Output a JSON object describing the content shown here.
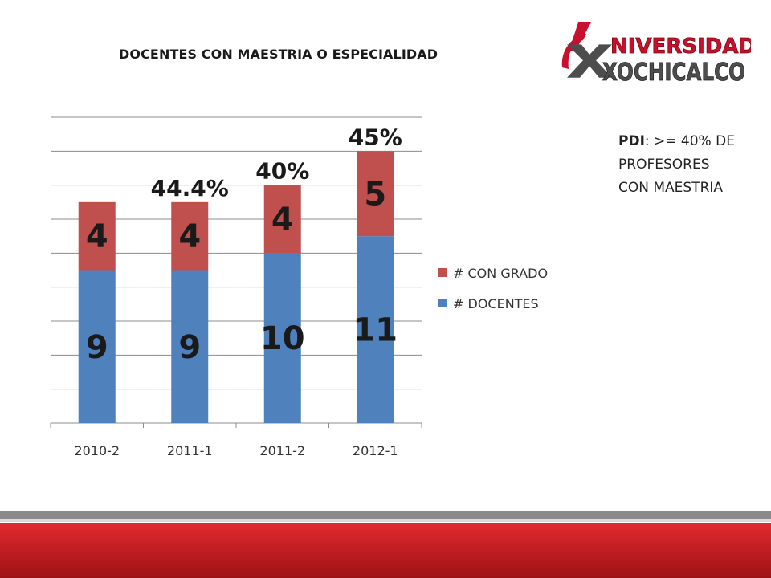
{
  "slide": {
    "title": "DOCENTES CON MAESTRIA O ESPECIALIDAD",
    "logo_line1": "NIVERSIDAD",
    "logo_line2": "XOCHICALCO",
    "note_bold": "PDI",
    "note_rest": ": >= 40% DE PROFESORES CON MAESTRIA"
  },
  "colors": {
    "docentes": "#4f81bd",
    "con_grado": "#c0504d",
    "logo_red": "#c8102e",
    "logo_gray": "#4d4d4d",
    "band_red": "#c41a1f"
  },
  "chart_data": {
    "type": "bar",
    "stacked": true,
    "categories": [
      "2010-2",
      "2011-1",
      "2011-2",
      "2012-1"
    ],
    "series": [
      {
        "name": "# DOCENTES",
        "values": [
          9,
          9,
          10,
          11
        ],
        "color": "#4f81bd"
      },
      {
        "name": "# CON GRADO",
        "values": [
          4,
          4,
          4,
          5
        ],
        "color": "#c0504d"
      }
    ],
    "percent_labels": [
      "",
      "44.4%",
      "40%",
      "45%"
    ],
    "ylim": [
      0,
      18
    ],
    "ytick_step": 2,
    "grid": true,
    "legend_position": "right"
  }
}
